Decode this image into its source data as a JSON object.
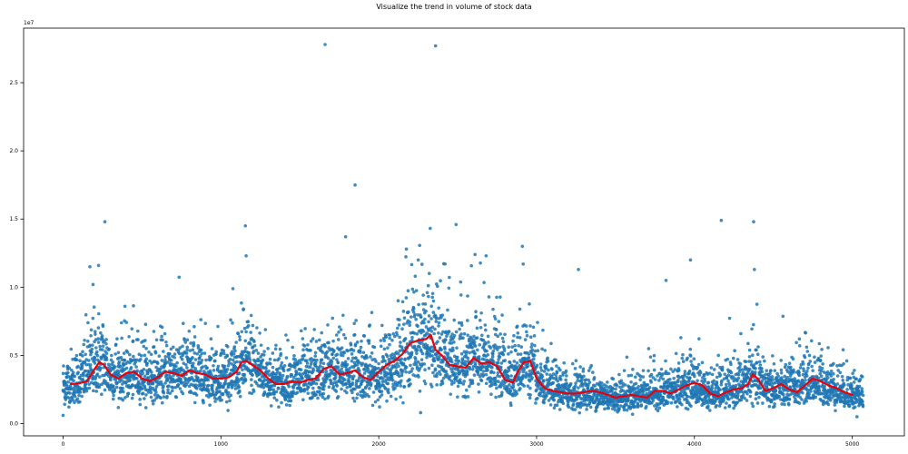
{
  "chart_data": {
    "type": "scatter",
    "title": "Visualize the trend in volume of stock data",
    "xlabel": "",
    "ylabel": "",
    "x_ticks": [
      "0",
      "1000",
      "2000",
      "3000",
      "4000",
      "5000"
    ],
    "y_ticks": [
      "0.0",
      "0.5",
      "1.0",
      "1.5",
      "2.0",
      "2.5"
    ],
    "y_offset_label": "1e7",
    "xlim": [
      -250,
      5330
    ],
    "ylim": [
      -900000,
      29000000
    ],
    "grid": false,
    "legend": "none",
    "colors": {
      "scatter": "#1f77b4",
      "trend": "#e8000b"
    },
    "series": [
      {
        "kind": "scatter",
        "n_points": 5070,
        "profile_x": [
          0,
          100,
          200,
          250,
          300,
          400,
          500,
          600,
          700,
          800,
          900,
          1000,
          1100,
          1150,
          1200,
          1300,
          1400,
          1500,
          1600,
          1700,
          1800,
          1900,
          2000,
          2100,
          2200,
          2300,
          2350,
          2400,
          2500,
          2600,
          2700,
          2800,
          2850,
          2900,
          2950,
          3000,
          3100,
          3200,
          3300,
          3400,
          3500,
          3600,
          3700,
          3800,
          3900,
          4000,
          4100,
          4200,
          4300,
          4350,
          4400,
          4500,
          4600,
          4700,
          4800,
          4900,
          5000,
          5070
        ],
        "profile_y": [
          2700000,
          3000000,
          4300000,
          4500000,
          3600000,
          3600000,
          3500000,
          3300000,
          3800000,
          3700000,
          3400000,
          3300000,
          3700000,
          4500000,
          4300000,
          3300000,
          3000000,
          3200000,
          3400000,
          3900000,
          3800000,
          3800000,
          3300000,
          4300000,
          5700000,
          6300000,
          5600000,
          5000000,
          4300000,
          4600000,
          4500000,
          3800000,
          3400000,
          4400000,
          4500000,
          3000000,
          2500000,
          2200000,
          2300000,
          2000000,
          1900000,
          2000000,
          2300000,
          2200000,
          2700000,
          2800000,
          2100000,
          2400000,
          2700000,
          3500000,
          3000000,
          2500000,
          2500000,
          3100000,
          2900000,
          2500000,
          2200000,
          2000000
        ],
        "outliers": [
          {
            "x": 0,
            "y": 600000
          },
          {
            "x": 170,
            "y": 11500000
          },
          {
            "x": 190,
            "y": 10200000
          },
          {
            "x": 225,
            "y": 11600000
          },
          {
            "x": 265,
            "y": 14800000
          },
          {
            "x": 1155,
            "y": 14500000
          },
          {
            "x": 1160,
            "y": 12300000
          },
          {
            "x": 1660,
            "y": 27800000
          },
          {
            "x": 1790,
            "y": 13700000
          },
          {
            "x": 1850,
            "y": 17500000
          },
          {
            "x": 2175,
            "y": 12800000
          },
          {
            "x": 2250,
            "y": 12000000
          },
          {
            "x": 2265,
            "y": 800000
          },
          {
            "x": 2360,
            "y": 27700000
          },
          {
            "x": 2420,
            "y": 11700000
          },
          {
            "x": 2490,
            "y": 14600000
          },
          {
            "x": 2610,
            "y": 12400000
          },
          {
            "x": 2680,
            "y": 12300000
          },
          {
            "x": 2910,
            "y": 13000000
          },
          {
            "x": 2915,
            "y": 11700000
          },
          {
            "x": 3265,
            "y": 11300000
          },
          {
            "x": 3820,
            "y": 10500000
          },
          {
            "x": 3975,
            "y": 12000000
          },
          {
            "x": 4170,
            "y": 14900000
          },
          {
            "x": 4375,
            "y": 14800000
          },
          {
            "x": 4380,
            "y": 11300000
          },
          {
            "x": 5030,
            "y": 500000
          }
        ]
      },
      {
        "kind": "line",
        "x": [
          50,
          100,
          150,
          200,
          230,
          260,
          300,
          350,
          400,
          450,
          500,
          550,
          600,
          650,
          700,
          750,
          800,
          850,
          900,
          950,
          1000,
          1050,
          1100,
          1130,
          1160,
          1200,
          1250,
          1300,
          1350,
          1400,
          1450,
          1500,
          1550,
          1600,
          1650,
          1700,
          1750,
          1800,
          1850,
          1900,
          1950,
          2000,
          2050,
          2100,
          2150,
          2200,
          2250,
          2300,
          2330,
          2360,
          2400,
          2450,
          2500,
          2550,
          2600,
          2650,
          2700,
          2750,
          2800,
          2850,
          2880,
          2920,
          2960,
          3000,
          3050,
          3100,
          3150,
          3200,
          3250,
          3300,
          3350,
          3400,
          3450,
          3500,
          3550,
          3600,
          3650,
          3700,
          3750,
          3800,
          3850,
          3900,
          3950,
          4000,
          4050,
          4100,
          4150,
          4200,
          4250,
          4300,
          4340,
          4370,
          4400,
          4450,
          4500,
          4550,
          4600,
          4650,
          4700,
          4750,
          4800,
          4850,
          4900,
          4950,
          5000
        ],
        "y": [
          2900000,
          2950000,
          3100000,
          4000000,
          4500000,
          4300000,
          3600000,
          3300000,
          3700000,
          3800000,
          3300000,
          3100000,
          3400000,
          3800000,
          3700000,
          3500000,
          3900000,
          3700000,
          3600000,
          3300000,
          3300000,
          3400000,
          3800000,
          4500000,
          4600000,
          4300000,
          3900000,
          3300000,
          2900000,
          2900000,
          3100000,
          3000000,
          3200000,
          3300000,
          4000000,
          4200000,
          3600000,
          3700000,
          3900000,
          3400000,
          3200000,
          3800000,
          4300000,
          4600000,
          5100000,
          5900000,
          6100000,
          6200000,
          6500000,
          5400000,
          5000000,
          4300000,
          4200000,
          4100000,
          4800000,
          4400000,
          4500000,
          4200000,
          3200000,
          3000000,
          3800000,
          4500000,
          4600000,
          3300000,
          2600000,
          2400000,
          2300000,
          2200000,
          2200000,
          2300000,
          2400000,
          2300000,
          2100000,
          1900000,
          2000000,
          2100000,
          2000000,
          1900000,
          2400000,
          2400000,
          2200000,
          2500000,
          2800000,
          3000000,
          2800000,
          2200000,
          2000000,
          2300000,
          2500000,
          2600000,
          2900000,
          3600000,
          3300000,
          2400000,
          2600000,
          2900000,
          2500000,
          2300000,
          2800000,
          3300000,
          3100000,
          2800000,
          2600000,
          2300000,
          2100000
        ]
      }
    ]
  }
}
